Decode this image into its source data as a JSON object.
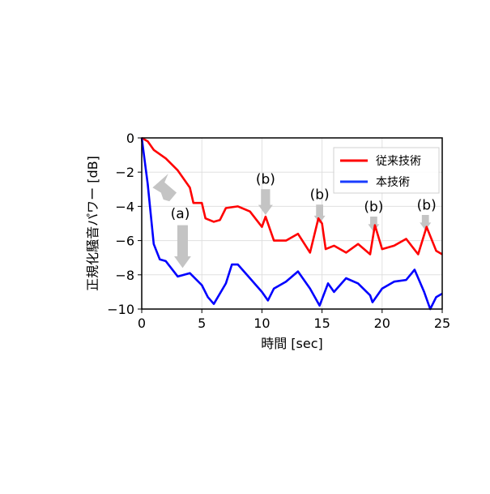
{
  "chart_data": {
    "type": "line",
    "title": "",
    "xlabel": "時間 [sec]",
    "ylabel": "正規化騒音パワー [dB]",
    "xlim": [
      0,
      25
    ],
    "ylim": [
      -10,
      0
    ],
    "xticks": [
      0,
      5,
      10,
      15,
      20,
      25
    ],
    "yticks": [
      0,
      -2,
      -4,
      -6,
      -8,
      -10
    ],
    "grid": true,
    "legend_position": "top-right",
    "series": [
      {
        "name": "従来技術",
        "color": "#ff0000",
        "x": [
          0,
          0.5,
          1,
          2,
          3,
          4,
          4.3,
          5,
          5.3,
          6,
          6.5,
          7,
          8,
          9,
          10,
          10.3,
          11,
          12,
          13,
          14,
          14.7,
          15,
          15.3,
          16,
          17,
          18,
          19,
          19.4,
          20,
          21,
          22,
          23,
          23.7,
          24.5,
          25
        ],
        "y": [
          0,
          -0.2,
          -0.7,
          -1.2,
          -1.9,
          -2.9,
          -3.8,
          -3.8,
          -4.7,
          -4.9,
          -4.8,
          -4.1,
          -4.0,
          -4.3,
          -5.2,
          -4.6,
          -6.0,
          -6.0,
          -5.6,
          -6.7,
          -4.7,
          -5.0,
          -6.5,
          -6.3,
          -6.7,
          -6.2,
          -6.8,
          -5.1,
          -6.5,
          -6.3,
          -5.9,
          -6.8,
          -5.2,
          -6.6,
          -6.8
        ]
      },
      {
        "name": "本技術",
        "color": "#0000ff",
        "x": [
          0,
          0.5,
          1,
          1.5,
          2,
          3,
          4,
          5,
          5.5,
          6,
          7,
          7.5,
          8,
          9,
          10,
          10.5,
          11,
          12,
          13,
          14,
          14.8,
          15.5,
          16,
          17,
          18,
          19,
          19.2,
          20,
          21,
          22,
          22.7,
          23.5,
          24,
          24.5,
          25
        ],
        "y": [
          0,
          -2.7,
          -6.2,
          -7.1,
          -7.2,
          -8.1,
          -7.9,
          -8.6,
          -9.3,
          -9.7,
          -8.5,
          -7.4,
          -7.4,
          -8.2,
          -9.0,
          -9.5,
          -8.8,
          -8.4,
          -7.8,
          -8.8,
          -9.8,
          -8.5,
          -9.0,
          -8.2,
          -8.5,
          -9.2,
          -9.6,
          -8.8,
          -8.4,
          -8.3,
          -7.7,
          -9.0,
          -10.0,
          -9.3,
          -9.1
        ]
      }
    ],
    "annotations": [
      {
        "label": "(a)",
        "text_x": 3.2,
        "text_y": -4.4
      },
      {
        "label": "(b)",
        "text_x": 10.3,
        "text_y": -2.4
      },
      {
        "label": "(b)",
        "text_x": 14.8,
        "text_y": -3.3
      },
      {
        "label": "(b)",
        "text_x": 19.3,
        "text_y": -4.0
      },
      {
        "label": "(b)",
        "text_x": 23.7,
        "text_y": -3.9
      }
    ]
  }
}
